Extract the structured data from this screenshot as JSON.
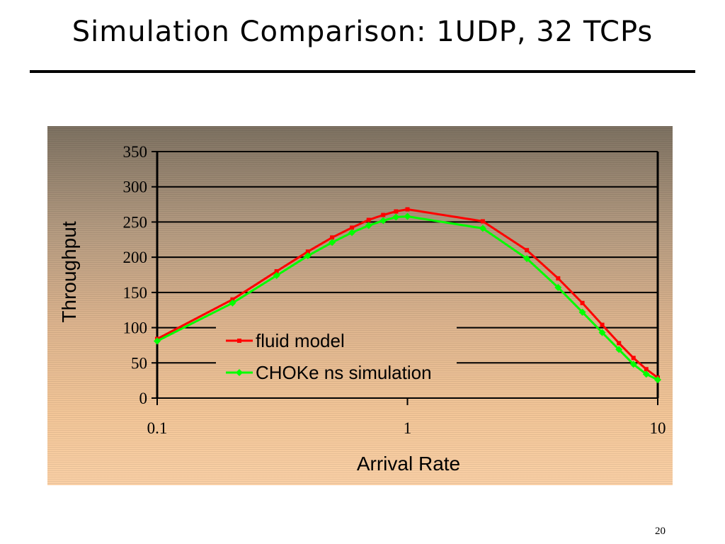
{
  "slide": {
    "title": "Simulation Comparison: 1UDP, 32 TCPs",
    "page_number": "20"
  },
  "chart_data": {
    "type": "line",
    "title": "",
    "xlabel": "Arrival Rate",
    "ylabel": "Throughput",
    "x_scale": "log",
    "xlim": [
      0.1,
      10
    ],
    "ylim": [
      0,
      350
    ],
    "x_ticks": [
      0.1,
      1,
      10
    ],
    "x_tick_labels": [
      "0.1",
      "1",
      "10"
    ],
    "y_ticks": [
      0,
      50,
      100,
      150,
      200,
      250,
      300,
      350
    ],
    "y_tick_labels": [
      "0",
      "50",
      "100",
      "150",
      "200",
      "250",
      "300",
      "350"
    ],
    "grid": "horizontal",
    "legend_position": "center-bottom",
    "series": [
      {
        "name": "fluid model",
        "color": "#ff0000",
        "marker": "square",
        "points": [
          [
            0.1,
            84
          ],
          [
            0.2,
            140
          ],
          [
            0.3,
            180
          ],
          [
            0.4,
            208
          ],
          [
            0.5,
            228
          ],
          [
            0.6,
            242
          ],
          [
            0.7,
            253
          ],
          [
            0.8,
            260
          ],
          [
            0.9,
            265
          ],
          [
            1.0,
            268
          ],
          [
            2.0,
            251
          ],
          [
            3.0,
            210
          ],
          [
            4.0,
            170
          ],
          [
            5.0,
            135
          ],
          [
            6.0,
            104
          ],
          [
            7.0,
            78
          ],
          [
            8.0,
            57
          ],
          [
            9.0,
            41
          ],
          [
            10.0,
            29
          ]
        ]
      },
      {
        "name": "CHOKe ns simulation",
        "color": "#00ff00",
        "marker": "diamond",
        "points": [
          [
            0.1,
            81
          ],
          [
            0.2,
            135
          ],
          [
            0.3,
            174
          ],
          [
            0.4,
            202
          ],
          [
            0.5,
            221
          ],
          [
            0.6,
            235
          ],
          [
            0.7,
            245
          ],
          [
            0.8,
            252
          ],
          [
            0.9,
            257
          ],
          [
            1.0,
            258
          ],
          [
            2.0,
            241
          ],
          [
            3.0,
            198
          ],
          [
            4.0,
            157
          ],
          [
            5.0,
            122
          ],
          [
            6.0,
            93
          ],
          [
            7.0,
            69
          ],
          [
            8.0,
            48
          ],
          [
            9.0,
            34
          ],
          [
            10.0,
            26
          ]
        ]
      }
    ]
  }
}
